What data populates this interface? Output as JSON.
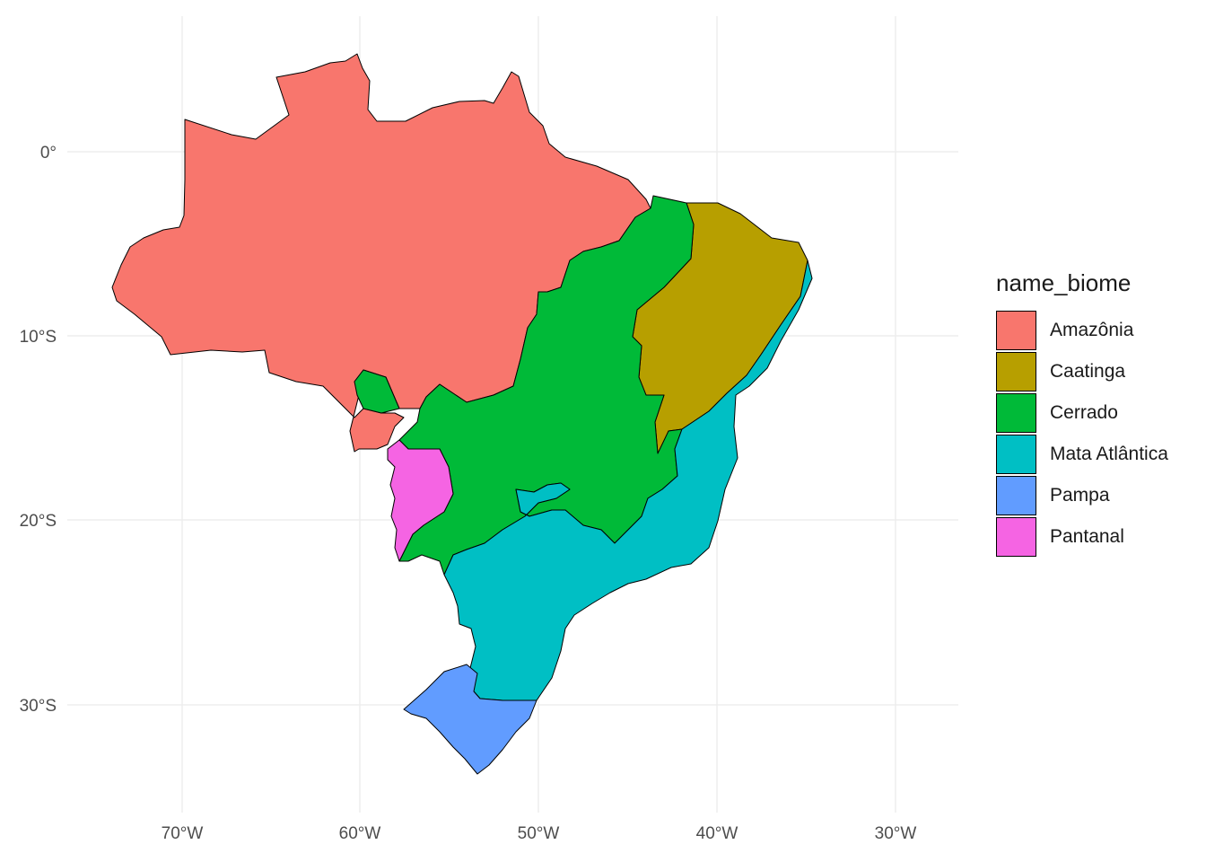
{
  "map": {
    "x_ticks": [
      "70°W",
      "60°W",
      "50°W",
      "40°W",
      "30°W"
    ],
    "y_ticks": [
      "0°",
      "10°S",
      "20°S",
      "30°S"
    ],
    "grid": true
  },
  "legend": {
    "title": "name_biome",
    "items": [
      {
        "label": "Amazônia",
        "color": "#F8766D"
      },
      {
        "label": "Caatinga",
        "color": "#B79F00"
      },
      {
        "label": "Cerrado",
        "color": "#00BA38"
      },
      {
        "label": "Mata Atlântica",
        "color": "#00BFC4"
      },
      {
        "label": "Pampa",
        "color": "#619CFF"
      },
      {
        "label": "Pantanal",
        "color": "#F564E3"
      }
    ]
  }
}
